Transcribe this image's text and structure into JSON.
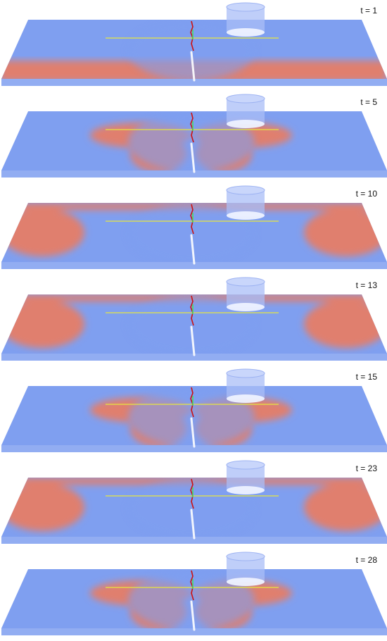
{
  "frames": [
    {
      "label": "t = 1",
      "pattern": "front"
    },
    {
      "label": "t = 5",
      "pattern": "wings"
    },
    {
      "label": "t = 10",
      "pattern": "outer"
    },
    {
      "label": "t = 13",
      "pattern": "outer"
    },
    {
      "label": "t = 15",
      "pattern": "wings"
    },
    {
      "label": "t = 23",
      "pattern": "outer"
    },
    {
      "label": "t = 28",
      "pattern": "wings"
    }
  ],
  "colors": {
    "cold": "#7f9ff0",
    "hot": "#e07f6e",
    "line": "#e6e640",
    "crack": "#cc1111",
    "highlight": "#44dd66"
  }
}
